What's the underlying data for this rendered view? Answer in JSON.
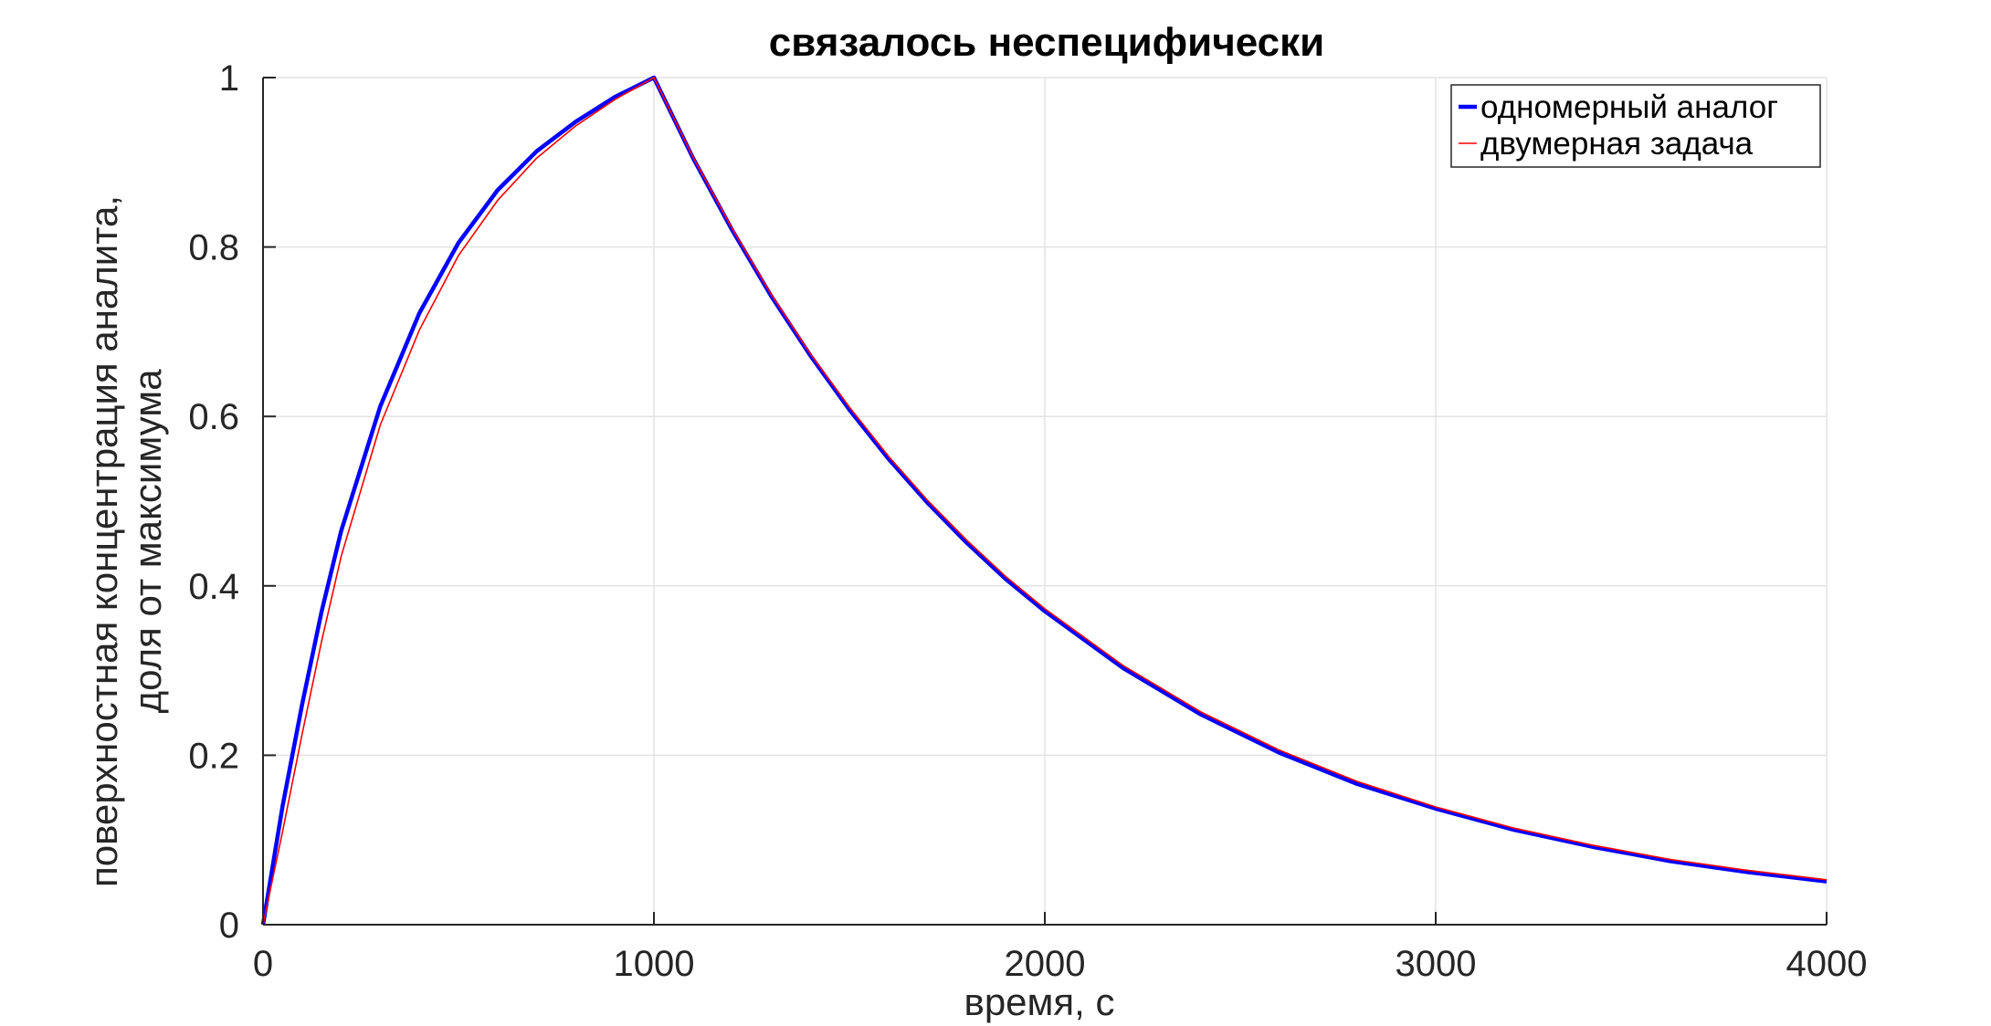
{
  "chart_data": {
    "type": "line",
    "title": "связалось неспецифически",
    "xlabel": "время, с",
    "ylabel_lines": [
      "поверхностная концентрация аналита,",
      "доля от максимума"
    ],
    "xlim": [
      0,
      4000
    ],
    "ylim": [
      0,
      1
    ],
    "xticks": [
      0,
      1000,
      2000,
      3000,
      4000
    ],
    "xtick_labels": [
      "0",
      "1000",
      "2000",
      "3000",
      "4000"
    ],
    "yticks": [
      0,
      0.2,
      0.4,
      0.6,
      0.8,
      1
    ],
    "ytick_labels": [
      "0",
      "0.2",
      "0.4",
      "0.6",
      "0.8",
      "1"
    ],
    "grid": true,
    "legend_position": "top-right",
    "series": [
      {
        "name": "одномерный аналог",
        "color": "#0000ff",
        "x": [
          0,
          50,
          100,
          150,
          200,
          300,
          400,
          500,
          600,
          700,
          800,
          900,
          1000,
          1100,
          1200,
          1300,
          1400,
          1500,
          1600,
          1700,
          1800,
          1900,
          2000,
          2200,
          2400,
          2600,
          2800,
          3000,
          3200,
          3400,
          3600,
          3800,
          4000
        ],
        "values": [
          0,
          0.14,
          0.26,
          0.37,
          0.465,
          0.612,
          0.722,
          0.805,
          0.867,
          0.913,
          0.948,
          0.977,
          1.0,
          0.905,
          0.82,
          0.742,
          0.672,
          0.608,
          0.55,
          0.498,
          0.451,
          0.408,
          0.37,
          0.303,
          0.248,
          0.203,
          0.166,
          0.137,
          0.112,
          0.092,
          0.075,
          0.062,
          0.051
        ]
      },
      {
        "name": "двумерная задача",
        "color": "#ff0000",
        "x": [
          0,
          50,
          100,
          150,
          200,
          300,
          400,
          500,
          600,
          700,
          800,
          900,
          1000,
          1100,
          1200,
          1300,
          1400,
          1500,
          1600,
          1700,
          1800,
          1900,
          2000,
          2200,
          2400,
          2600,
          2800,
          3000,
          3200,
          3400,
          3600,
          3800,
          4000
        ],
        "values": [
          0,
          0.11,
          0.225,
          0.335,
          0.435,
          0.59,
          0.702,
          0.79,
          0.855,
          0.905,
          0.943,
          0.974,
          1.0,
          0.906,
          0.822,
          0.744,
          0.674,
          0.611,
          0.553,
          0.501,
          0.454,
          0.411,
          0.373,
          0.306,
          0.251,
          0.206,
          0.169,
          0.139,
          0.114,
          0.094,
          0.077,
          0.064,
          0.053
        ]
      }
    ]
  }
}
